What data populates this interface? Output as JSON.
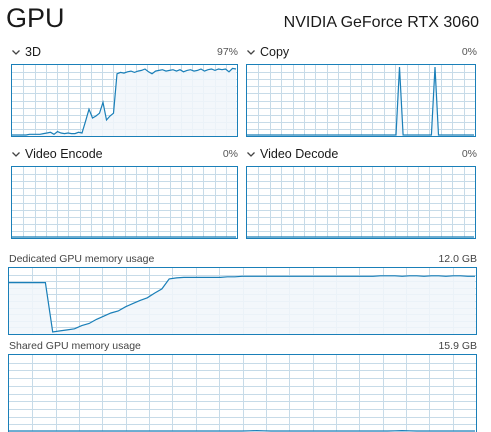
{
  "header": {
    "title": "GPU",
    "gpu_name": "NVIDIA GeForce RTX 3060"
  },
  "colors": {
    "accent": "#1a7fb8",
    "grid": "#c7dbe8",
    "fill": "#f1f6fa",
    "text": "#1a1a1a"
  },
  "engines": [
    {
      "label": "3D",
      "value": "97%",
      "icon": "chevron-down-icon"
    },
    {
      "label": "Copy",
      "value": "0%",
      "icon": "chevron-down-icon"
    },
    {
      "label": "Video Encode",
      "value": "0%",
      "icon": "chevron-down-icon"
    },
    {
      "label": "Video Decode",
      "value": "0%",
      "icon": "chevron-down-icon"
    }
  ],
  "memory": {
    "dedicated": {
      "label": "Dedicated GPU memory usage",
      "value": "12.0 GB"
    },
    "shared": {
      "label": "Shared GPU memory usage",
      "value": "15.9 GB"
    }
  },
  "chart_data": [
    {
      "type": "area",
      "title": "3D",
      "ylim": [
        0,
        100
      ],
      "grid": true,
      "series": [
        {
          "values": [
            0,
            0,
            0,
            0,
            0,
            1,
            1,
            1,
            1,
            2,
            3,
            4,
            1,
            5,
            3,
            2,
            3,
            2,
            2,
            4,
            3,
            20,
            38,
            25,
            28,
            32,
            48,
            22,
            28,
            32,
            90,
            92,
            91,
            93,
            94,
            92,
            94,
            95,
            97,
            93,
            90,
            94,
            95,
            96,
            94,
            95,
            96,
            94,
            96,
            93,
            95,
            96,
            94,
            95,
            97,
            94,
            96,
            97,
            95,
            97,
            96,
            97,
            93,
            98,
            97
          ]
        }
      ]
    },
    {
      "type": "area",
      "title": "Copy",
      "ylim": [
        0,
        100
      ],
      "grid": true,
      "series": [
        {
          "values": [
            0,
            0,
            0,
            0,
            0,
            0,
            0,
            0,
            0,
            0,
            0,
            0,
            0,
            0,
            0,
            0,
            0,
            0,
            0,
            0,
            0,
            0,
            0,
            0,
            0,
            0,
            0,
            0,
            0,
            0,
            0,
            0,
            0,
            0,
            0,
            0,
            0,
            0,
            0,
            0,
            0,
            0,
            0,
            100,
            0,
            0,
            0,
            0,
            0,
            0,
            0,
            0,
            0,
            100,
            0,
            0,
            0,
            0,
            0,
            0,
            0,
            0,
            0,
            0,
            0
          ]
        }
      ]
    },
    {
      "type": "area",
      "title": "Video Encode",
      "ylim": [
        0,
        100
      ],
      "grid": true,
      "series": [
        {
          "values": [
            0,
            0,
            0,
            0,
            0,
            0,
            0,
            0,
            0,
            0,
            0,
            0,
            0,
            0,
            0,
            0,
            0,
            0,
            0,
            0,
            0,
            0,
            0,
            0,
            0,
            0,
            0,
            0,
            0,
            0,
            0,
            0,
            0,
            0,
            0,
            0,
            0,
            0,
            0,
            0,
            0,
            0,
            0,
            0,
            0,
            0,
            0,
            0,
            0,
            0,
            0,
            0,
            0,
            0,
            0,
            0,
            0,
            0,
            0,
            0,
            0,
            0,
            0,
            0,
            0
          ]
        }
      ]
    },
    {
      "type": "area",
      "title": "Video Decode",
      "ylim": [
        0,
        100
      ],
      "grid": true,
      "series": [
        {
          "values": [
            0,
            0,
            0,
            0,
            0,
            0,
            0,
            0,
            0,
            0,
            0,
            0,
            0,
            0,
            0,
            0,
            0,
            0,
            0,
            0,
            0,
            0,
            0,
            0,
            0,
            0,
            0,
            0,
            0,
            0,
            0,
            0,
            0,
            0,
            0,
            0,
            0,
            0,
            0,
            0,
            0,
            0,
            0,
            0,
            0,
            0,
            0,
            0,
            0,
            0,
            0,
            0,
            0,
            0,
            0,
            0,
            0,
            0,
            0,
            0,
            0,
            0,
            0,
            0,
            0
          ]
        }
      ]
    },
    {
      "type": "area",
      "title": "Dedicated GPU memory usage",
      "ylim": [
        0,
        12.0
      ],
      "grid": true,
      "series": [
        {
          "values": [
            9.6,
            9.6,
            9.6,
            9.6,
            9.6,
            9.6,
            0.2,
            0.4,
            0.6,
            0.8,
            1.4,
            1.8,
            2.6,
            3.2,
            3.8,
            4.2,
            5.0,
            5.6,
            6.2,
            6.7,
            7.6,
            8.4,
            10.3,
            10.5,
            10.6,
            10.6,
            10.6,
            10.6,
            10.6,
            10.6,
            10.7,
            10.7,
            10.8,
            10.8,
            10.8,
            10.8,
            10.8,
            10.8,
            10.8,
            10.8,
            10.8,
            10.8,
            10.8,
            10.8,
            10.8,
            10.8,
            10.8,
            10.8,
            10.8,
            10.8,
            10.8,
            10.9,
            10.9,
            10.9,
            10.8,
            10.9,
            10.9,
            10.8,
            10.9,
            10.9,
            10.8,
            10.9,
            10.9,
            10.8,
            10.8
          ]
        }
      ]
    },
    {
      "type": "area",
      "title": "Shared GPU memory usage",
      "ylim": [
        0,
        15.9
      ],
      "grid": true,
      "series": [
        {
          "values": [
            0,
            0,
            0,
            0,
            0,
            0,
            0,
            0,
            0,
            0,
            0,
            0,
            0,
            0,
            0,
            0,
            0,
            0,
            0,
            0,
            0,
            0,
            0,
            0,
            0,
            0,
            0,
            0,
            0,
            0,
            0,
            0,
            0,
            0.05,
            0.08,
            0.05,
            0,
            0,
            0,
            0,
            0,
            0,
            0,
            0,
            0,
            0,
            0,
            0,
            0,
            0,
            0,
            0,
            0,
            0.05,
            0.08,
            0.05,
            0,
            0,
            0,
            0,
            0,
            0,
            0,
            0,
            0
          ]
        }
      ]
    }
  ]
}
